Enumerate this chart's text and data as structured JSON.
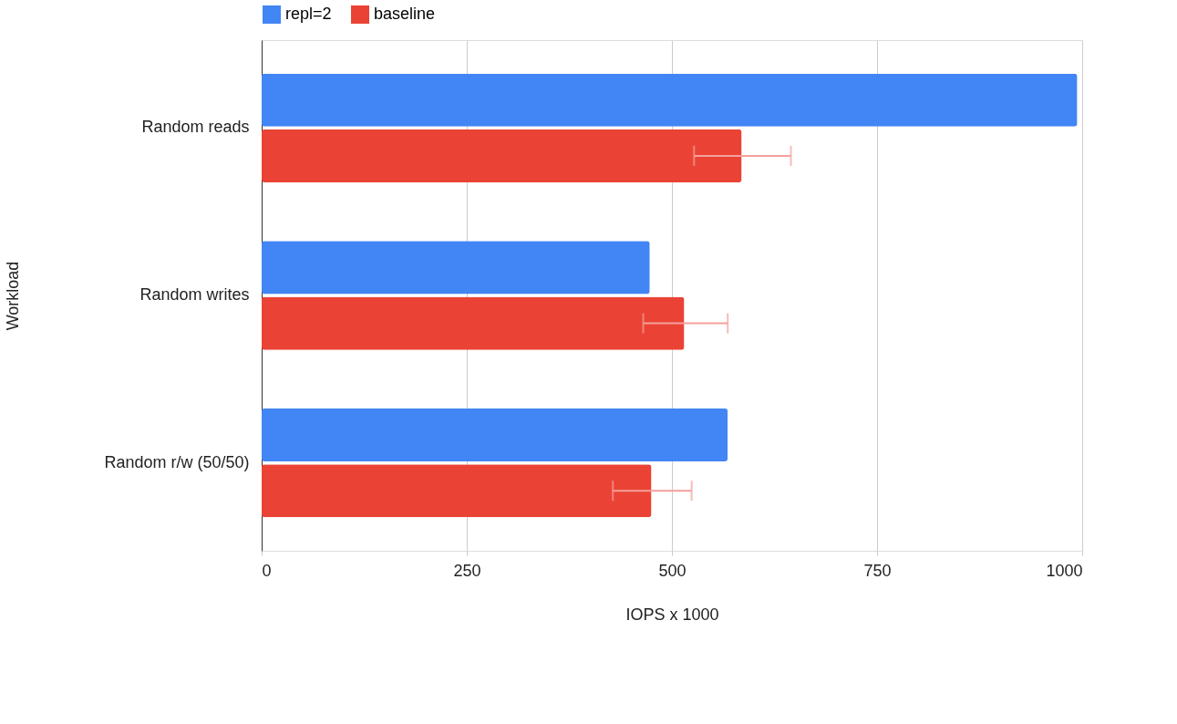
{
  "chart_data": {
    "type": "bar",
    "orientation": "horizontal",
    "xlabel": "IOPS x 1000",
    "ylabel": "Workload",
    "categories": [
      "Random reads",
      "Random writes",
      "Random r/w (50/50)"
    ],
    "series": [
      {
        "name": "repl=2",
        "color": "#4285f4",
        "values": [
          994,
          473,
          568
        ]
      },
      {
        "name": "baseline",
        "color": "#ea4335",
        "values": [
          585,
          515,
          475
        ],
        "errors": [
          [
            527,
            645
          ],
          [
            465,
            568
          ],
          [
            428,
            524
          ]
        ]
      }
    ],
    "xlim": [
      0,
      1000
    ],
    "xticks": [
      0,
      250,
      500,
      750,
      1000
    ],
    "grid": "x",
    "legend": "top"
  }
}
